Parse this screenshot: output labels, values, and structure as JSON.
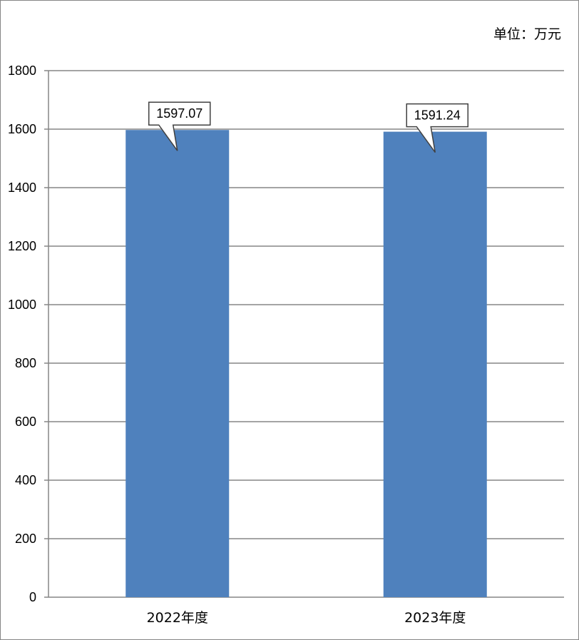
{
  "chart_data": {
    "type": "bar",
    "unit_label": "单位：万元",
    "categories": [
      "2022年度",
      "2023年度"
    ],
    "values": [
      1597.07,
      1591.24
    ],
    "data_labels": [
      "1597.07",
      "1591.24"
    ],
    "ylim": [
      0,
      1800
    ],
    "yticks": [
      0,
      200,
      400,
      600,
      800,
      1000,
      1200,
      1400,
      1600,
      1800
    ],
    "grid": true,
    "legend": "none",
    "colors": {
      "bar": "#4f81bd",
      "grid": "#868686",
      "axis": "#868686",
      "callout_border": "#404040"
    }
  }
}
